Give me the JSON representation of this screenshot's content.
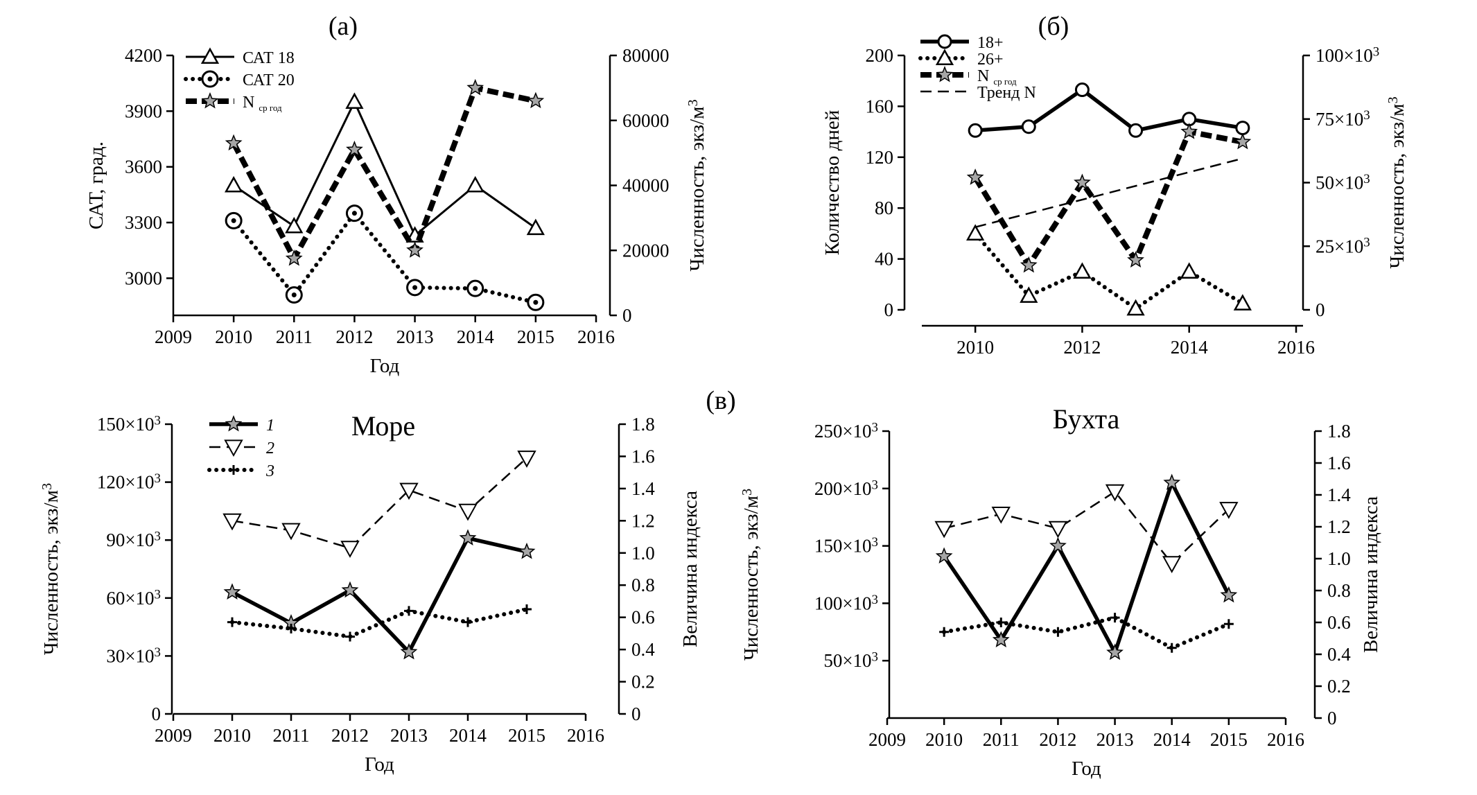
{
  "figure_labels": {
    "a": "(а)",
    "b": "(б)",
    "c": "(в)"
  },
  "colors": {
    "ink": "#000000",
    "star_fill": "#a6a6a6"
  },
  "chart_data": [
    {
      "id": "a",
      "type": "line",
      "xlabel": "Год",
      "ylabel": "САТ, град.",
      "y2label": "Численность, экз/м³",
      "xlim": [
        2009,
        2016
      ],
      "xticks": [
        "2009",
        "2010",
        "2011",
        "2012",
        "2013",
        "2014",
        "2015",
        "2016"
      ],
      "ylim": [
        2800,
        4200
      ],
      "yticks": [
        "3000",
        "3300",
        "3600",
        "3900",
        "4200"
      ],
      "y2lim": [
        0,
        80000
      ],
      "y2ticks": [
        "0",
        "20000",
        "40000",
        "60000",
        "80000"
      ],
      "legend_position": "top-left",
      "series": [
        {
          "name": "САТ 18",
          "axis": "left",
          "style": "solid",
          "marker": "triangle",
          "x": [
            2010,
            2011,
            2012,
            2013,
            2014,
            2015
          ],
          "values": [
            3500,
            3280,
            3950,
            3230,
            3500,
            3270
          ]
        },
        {
          "name": "САТ 20",
          "axis": "left",
          "style": "dotted",
          "marker": "circle-dot",
          "x": [
            2010,
            2011,
            2012,
            2013,
            2014,
            2015
          ],
          "values": [
            3310,
            2910,
            3350,
            2950,
            2945,
            2870
          ]
        },
        {
          "name": "N",
          "name_sub": "ср год",
          "axis": "right",
          "style": "thick-dash",
          "marker": "star",
          "x": [
            2010,
            2011,
            2012,
            2013,
            2014,
            2015
          ],
          "values": [
            53000,
            17500,
            51000,
            20000,
            70000,
            66000
          ]
        }
      ]
    },
    {
      "id": "b",
      "type": "line",
      "xlabel": "",
      "ylabel": "Количество дней",
      "y2label": "Численность, экз/м³",
      "xlim": [
        2009,
        2016
      ],
      "xticks": [
        "2010",
        "2012",
        "2014",
        "2016"
      ],
      "ylim": [
        0,
        200
      ],
      "yticks": [
        "0",
        "40",
        "80",
        "120",
        "160",
        "200"
      ],
      "y2lim": [
        0,
        100000
      ],
      "y2ticks": [
        "0",
        "25×10³",
        "50×10³",
        "75×10³",
        "100×10³"
      ],
      "legend_position": "top-left",
      "series": [
        {
          "name": "18+",
          "axis": "left",
          "style": "thick-solid",
          "marker": "circle",
          "x": [
            2010,
            2011,
            2012,
            2013,
            2014,
            2015
          ],
          "values": [
            141,
            144,
            173,
            141,
            150,
            143
          ]
        },
        {
          "name": "26+",
          "axis": "left",
          "style": "dotted",
          "marker": "triangle",
          "x": [
            2010,
            2011,
            2012,
            2013,
            2014,
            2015
          ],
          "values": [
            60,
            11,
            30,
            1,
            30,
            5
          ]
        },
        {
          "name": "N",
          "name_sub": "ср год",
          "axis": "right",
          "style": "thick-dash",
          "marker": "star",
          "x": [
            2010,
            2011,
            2012,
            2013,
            2014,
            2015
          ],
          "values": [
            52000,
            17500,
            50000,
            19500,
            70000,
            66000
          ]
        },
        {
          "name": "Тренд N",
          "axis": "right",
          "style": "dashed",
          "marker": "none",
          "x": [
            2010,
            2015
          ],
          "values": [
            32500,
            59500
          ]
        }
      ]
    },
    {
      "id": "c1",
      "type": "line",
      "title": "Море",
      "xlabel": "Год",
      "ylabel": "Численность, экз/м³",
      "y2label": "Величина индекса",
      "xlim": [
        2009,
        2016
      ],
      "xticks": [
        "2009",
        "2010",
        "2011",
        "2012",
        "2013",
        "2014",
        "2015",
        "2016"
      ],
      "ylim": [
        0,
        150000
      ],
      "yticks": [
        "0",
        "30×10³",
        "60×10³",
        "90×10³",
        "120×10³",
        "150×10³"
      ],
      "y2lim": [
        0,
        1.8
      ],
      "y2ticks": [
        "0",
        "0.2",
        "0.4",
        "0.6",
        "0.8",
        "1.0",
        "1.2",
        "1.4",
        "1.6",
        "1.8"
      ],
      "legend_position": "top-left",
      "series": [
        {
          "name": "1",
          "axis": "left",
          "style": "thick-solid",
          "marker": "star",
          "x": [
            2010,
            2011,
            2012,
            2013,
            2014,
            2015
          ],
          "values": [
            63000,
            47000,
            64000,
            32000,
            91000,
            84000
          ]
        },
        {
          "name": "2",
          "axis": "right",
          "style": "dashed",
          "marker": "triangle-down",
          "x": [
            2010,
            2011,
            2012,
            2013,
            2014,
            2015
          ],
          "values": [
            1.2,
            1.14,
            1.03,
            1.39,
            1.26,
            1.59
          ]
        },
        {
          "name": "3",
          "axis": "right",
          "style": "dotted",
          "marker": "plus",
          "x": [
            2010,
            2011,
            2012,
            2013,
            2014,
            2015
          ],
          "values": [
            0.57,
            0.53,
            0.48,
            0.64,
            0.57,
            0.65
          ]
        }
      ]
    },
    {
      "id": "c2",
      "type": "line",
      "title": "Бухта",
      "xlabel": "Год",
      "ylabel": "Численность, экз/м³",
      "y2label": "Величина индекса",
      "xlim": [
        2009,
        2016
      ],
      "xticks": [
        "2009",
        "2010",
        "2011",
        "2012",
        "2013",
        "2014",
        "2015",
        "2016"
      ],
      "ylim": [
        0,
        250000
      ],
      "yticks": [
        "50×10³",
        "100×10³",
        "150×10³",
        "200×10³",
        "250×10³"
      ],
      "y2lim": [
        0,
        1.8
      ],
      "y2ticks": [
        "0",
        "0.2",
        "0.4",
        "0.6",
        "0.8",
        "1.0",
        "1.2",
        "1.4",
        "1.6",
        "1.8"
      ],
      "series": [
        {
          "name": "1",
          "axis": "left",
          "style": "thick-solid",
          "marker": "star",
          "x": [
            2010,
            2011,
            2012,
            2013,
            2014,
            2015
          ],
          "values": [
            141000,
            68000,
            150000,
            57000,
            205000,
            107000
          ]
        },
        {
          "name": "2",
          "axis": "right",
          "style": "dashed",
          "marker": "triangle-down",
          "x": [
            2010,
            2011,
            2012,
            2013,
            2014,
            2015
          ],
          "values": [
            1.19,
            1.28,
            1.19,
            1.42,
            0.97,
            1.31
          ]
        },
        {
          "name": "3",
          "axis": "right",
          "style": "dotted",
          "marker": "plus",
          "x": [
            2010,
            2011,
            2012,
            2013,
            2014,
            2015
          ],
          "values": [
            0.54,
            0.6,
            0.54,
            0.63,
            0.44,
            0.59
          ]
        }
      ]
    }
  ]
}
